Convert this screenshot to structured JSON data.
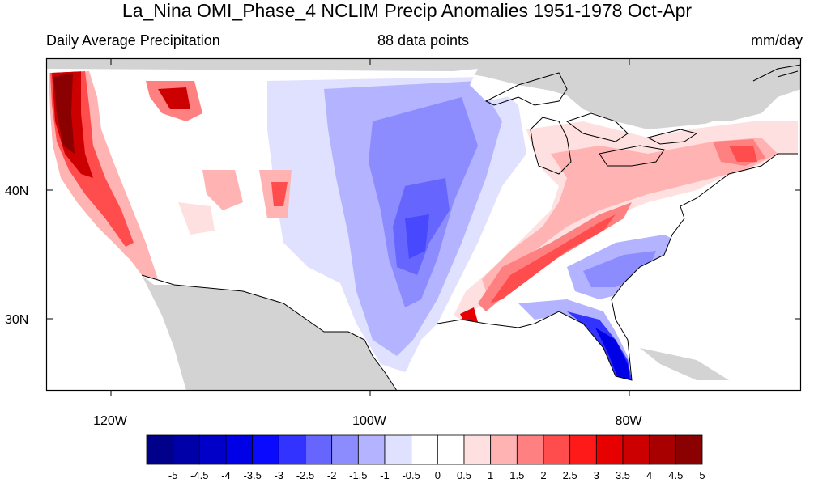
{
  "header": {
    "title": "La_Nina OMI_Phase_4 NCLIM Precip Anomalies 1951-1978 Oct-Apr",
    "left_subtitle": "Daily Average Precipitation",
    "center_subtitle": "88 data points",
    "right_subtitle": "mm/day"
  },
  "map": {
    "lat_labels": [
      "40N",
      "30N"
    ],
    "lon_labels": [
      "120W",
      "100W",
      "80W"
    ],
    "land_color": "#d3d3d3",
    "ocean_color": "#ffffff"
  },
  "colorbar": {
    "labels": [
      "-5",
      "-4.5",
      "-4",
      "-3.5",
      "-3",
      "-2.5",
      "-2",
      "-1.5",
      "-1",
      "-0.5",
      "0",
      "0.5",
      "1",
      "1.5",
      "2",
      "2.5",
      "3",
      "3.5",
      "4",
      "4.5",
      "5"
    ],
    "colors": [
      "#00008b",
      "#0000a8",
      "#0000c8",
      "#0000e6",
      "#0a0aff",
      "#3333ff",
      "#6666ff",
      "#8c8cff",
      "#b3b3ff",
      "#e0e0ff",
      "#ffffff",
      "#ffffff",
      "#ffe0e0",
      "#ffb3b3",
      "#ff8080",
      "#ff4d4d",
      "#ff1a1a",
      "#e60000",
      "#cc0000",
      "#a80000",
      "#8b0000"
    ]
  }
}
